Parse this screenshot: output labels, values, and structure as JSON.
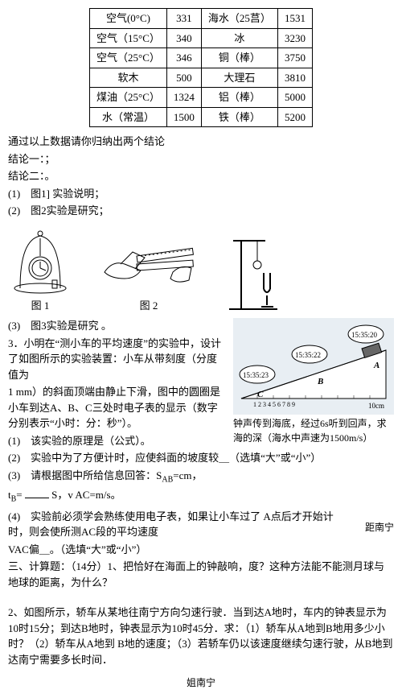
{
  "table": {
    "rows": [
      [
        "空气(0°C)",
        "331",
        "海水（25莒）",
        "1531"
      ],
      [
        "空气（15°C）",
        "340",
        "冰",
        "3230"
      ],
      [
        "空气（25°C）",
        "346",
        "铜（棒）",
        "3750"
      ],
      [
        "软木",
        "500",
        "大理石",
        "3810"
      ],
      [
        "煤油（25°C）",
        "1324",
        "铝（棒）",
        "5000"
      ],
      [
        "水（常温）",
        "1500",
        "铁（棒）",
        "5200"
      ]
    ]
  },
  "t_intro": "通过以上数据请你归纳出两个结论",
  "t_c1": "结论一：；",
  "t_c2": "结论二：。",
  "q1": "(1)　图1] 实验说明；",
  "q2": "(2)　图2实验是研究；",
  "cap1": "图 1",
  "cap2": "图 2",
  "q3": "(3)　图3实验是研究 。",
  "p3a": "3．小明在“测小车的平均速度”的实验中，设计了如图所示的实验装置：小车从带刻度（分度值为",
  "p3b": "1 mm）的斜面顶端由静止下滑，图中的圆圈是小车到达A、B、C三处时电子表的显示（数字分别表示“小时：分：秒”）。",
  "p3q1": "(1)　该实验的原理是（公式）。",
  "p3q2": "(2)　实验中为了方便计时，应使斜面的坡度较＿（选填“大”或“小”）",
  "p3q3a": "(3)　请根据图中所给信息回答：S",
  "p3q3b": "=cm，",
  "p3q3c": "t",
  "p3q3d": "= ",
  "p3q3e": " S，v AC=m/s。",
  "p3q4a": "(4)　实验前必须学会熟练使用电子表，如果让小车过了 A点后才开始计时，则会使所测AC段的平均速度",
  "p3q4b": "VAC偏＿。（选填“大”或“小”）",
  "ramp_caption": "钟声传到海底，经过6s听到回声，求海的深（海水中声速为1500m/s）",
  "ramp_labels": {
    "a": "A",
    "b": "B",
    "c": "C",
    "t1": "15:35:23",
    "t2": "15:35:22",
    "t3": "15:35:20",
    "scale": "10cm"
  },
  "sec3": "三、计算题：（14分）1、把恰好在海面上的钟敲响，度？这种方法能不能测月球与地球的距离，为什么？",
  "side": "距南宁",
  "p2": "2、如图所示，轿车从某地往南宁方向匀速行驶．当到达A地时，车内的钟表显示为10时15分；到达B地时，钟表显示为10时45分．求：（1）轿车从A地到B地用多少小时？（2）轿车从A地到 B地的速度；（3）若轿车仍以该速度继续匀速行驶，从B地到达南宁需要多长时间．",
  "footer": "姐南宁"
}
